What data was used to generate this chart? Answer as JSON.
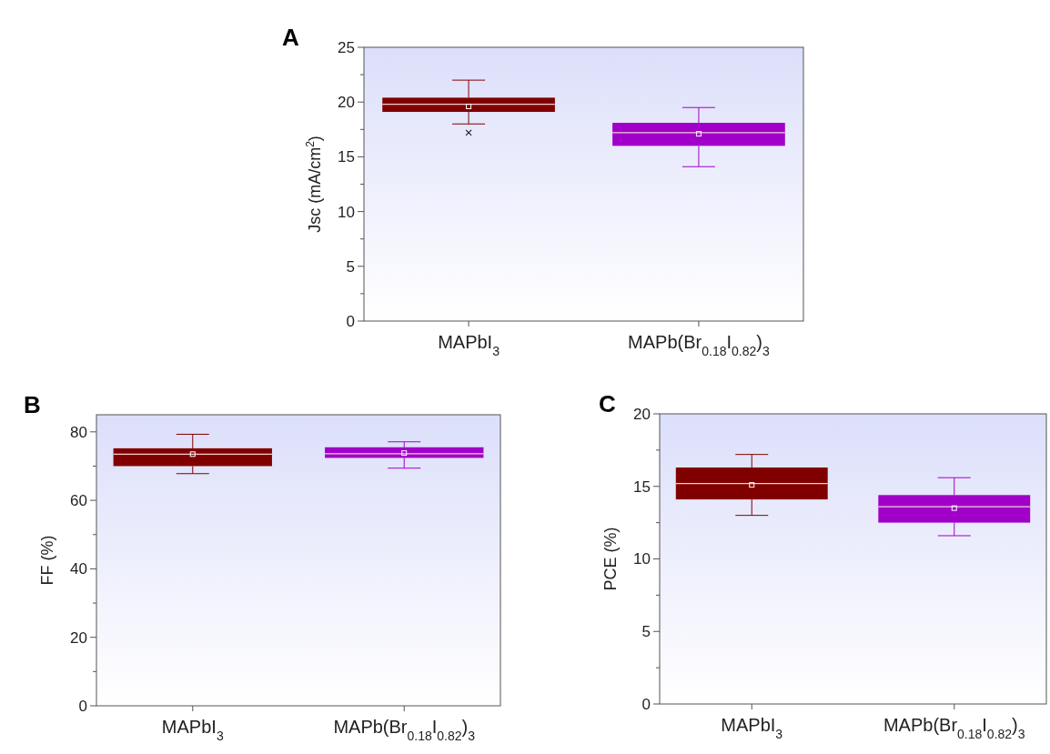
{
  "chart_data": [
    {
      "type": "box",
      "title": "A",
      "ylabel": "Jsc (mA/cm$^{2}$)",
      "categories": [
        "MAPbI$_{3}$",
        "MAPb(Br$_{0.18}$I$_{0.82}$)$_{3}$"
      ],
      "colors": [
        "#800000",
        "#a000c8"
      ],
      "boxes": [
        {
          "low": 18.0,
          "q1": 19.1,
          "median": 19.8,
          "q3": 20.4,
          "high": 22.0,
          "mean": 19.6,
          "outliers": [
            17.2
          ]
        },
        {
          "low": 14.1,
          "q1": 16.0,
          "median": 17.2,
          "q3": 18.1,
          "high": 19.5,
          "mean": 17.1
        }
      ],
      "ylim": [
        0,
        25
      ],
      "yticks": [
        0,
        {
          "value": 2.5,
          "label": null
        },
        5,
        {
          "value": 7.5,
          "label": null
        },
        10,
        {
          "value": 12.5,
          "label": null
        },
        15,
        {
          "value": 17.5,
          "label": null
        },
        20,
        {
          "value": 22.5,
          "label": null
        },
        25
      ]
    },
    {
      "type": "box",
      "title": "B",
      "ylabel": "FF (%)",
      "categories": [
        "MAPbI$_{3}$",
        "MAPb(Br$_{0.18}$I$_{0.82}$)$_{3}$"
      ],
      "colors": [
        "#800000",
        "#a000c8"
      ],
      "boxes": [
        {
          "low": 67.8,
          "q1": 70.0,
          "median": 73.5,
          "q3": 75.2,
          "high": 79.3,
          "mean": 73.5
        },
        {
          "low": 69.4,
          "q1": 72.4,
          "median": 73.6,
          "q3": 75.5,
          "high": 77.1,
          "mean": 73.8
        }
      ],
      "ylim": [
        0,
        85
      ],
      "yticks": [
        0,
        {
          "value": 10,
          "label": null
        },
        20,
        {
          "value": 30,
          "label": null
        },
        40,
        {
          "value": 50,
          "label": null
        },
        60,
        {
          "value": 70,
          "label": null
        },
        80
      ]
    },
    {
      "type": "box",
      "title": "C",
      "ylabel": "PCE (%)",
      "categories": [
        "MAPbI$_{3}$",
        "MAPb(Br$_{0.18}$I$_{0.82}$)$_{3}$"
      ],
      "colors": [
        "#800000",
        "#a000c8"
      ],
      "boxes": [
        {
          "low": 13.0,
          "q1": 14.1,
          "median": 15.2,
          "q3": 16.3,
          "high": 17.2,
          "mean": 15.1
        },
        {
          "low": 11.6,
          "q1": 12.5,
          "median": 13.6,
          "q3": 14.4,
          "high": 15.6,
          "mean": 13.5
        }
      ],
      "ylim": [
        0,
        20
      ],
      "yticks": [
        0,
        {
          "value": 2.5,
          "label": null
        },
        5,
        {
          "value": 7.5,
          "label": null
        },
        10,
        {
          "value": 12.5,
          "label": null
        },
        15,
        {
          "value": 17.5,
          "label": null
        },
        20
      ]
    }
  ]
}
